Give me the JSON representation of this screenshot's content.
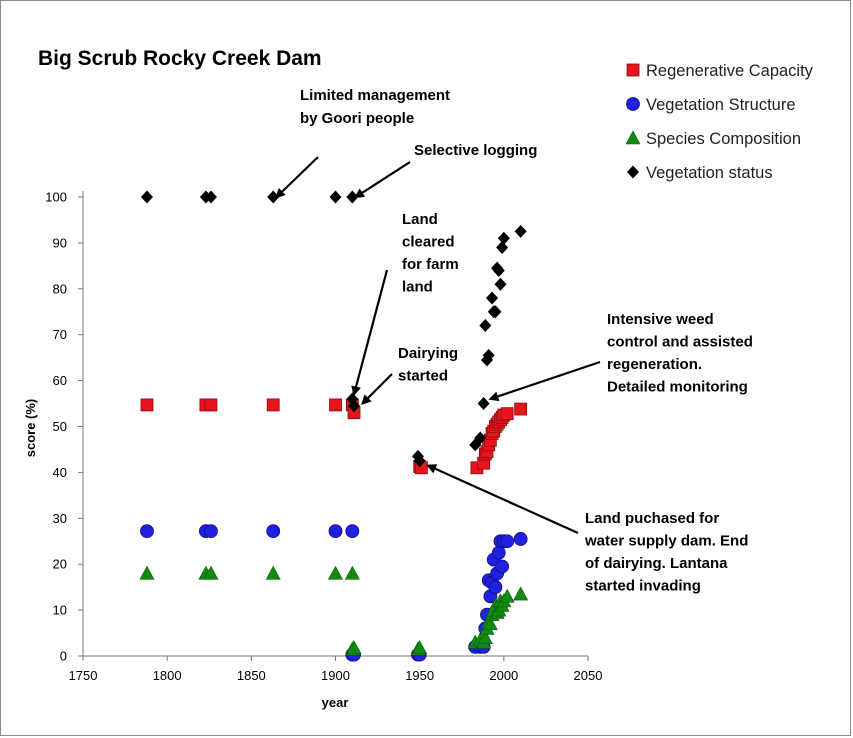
{
  "chart_data": {
    "type": "scatter",
    "title": "Big Scrub Rocky Creek Dam",
    "xlabel": "year",
    "ylabel": "score (%)",
    "xlim": [
      1750,
      2050
    ],
    "ylim": [
      0,
      100
    ],
    "x_ticks": [
      1750,
      1800,
      1850,
      1900,
      1950,
      2000,
      2050
    ],
    "y_ticks": [
      0,
      10,
      20,
      30,
      40,
      50,
      60,
      70,
      80,
      90,
      100
    ],
    "grid": false,
    "legend_position": "top-right",
    "series": [
      {
        "name": "Regenerative Capacity",
        "marker": "square",
        "color": "#e8141b",
        "points": [
          [
            1788,
            54.7
          ],
          [
            1823,
            54.7
          ],
          [
            1826,
            54.7
          ],
          [
            1863,
            54.7
          ],
          [
            1900,
            54.7
          ],
          [
            1910,
            54.7
          ],
          [
            1911,
            53
          ],
          [
            1950,
            41.3
          ],
          [
            1951,
            41
          ],
          [
            1984,
            41
          ],
          [
            1988,
            42
          ],
          [
            1989,
            44
          ],
          [
            1990,
            44.5
          ],
          [
            1991,
            46
          ],
          [
            1992,
            47
          ],
          [
            1993,
            48.5
          ],
          [
            1994,
            49
          ],
          [
            1995,
            50
          ],
          [
            1996,
            50.5
          ],
          [
            1997,
            51
          ],
          [
            1998,
            51.5
          ],
          [
            1999,
            52
          ],
          [
            2000,
            52.5
          ],
          [
            2002,
            52.8
          ],
          [
            2010,
            53.8
          ]
        ]
      },
      {
        "name": "Vegetation Structure",
        "marker": "circle",
        "color": "#2020e0",
        "points": [
          [
            1788,
            27.2
          ],
          [
            1823,
            27.2
          ],
          [
            1826,
            27.2
          ],
          [
            1863,
            27.2
          ],
          [
            1900,
            27.2
          ],
          [
            1910,
            27.2
          ],
          [
            1910,
            0.3
          ],
          [
            1911,
            0.3
          ],
          [
            1949,
            0.3
          ],
          [
            1950,
            0.3
          ],
          [
            1983,
            2
          ],
          [
            1986,
            2
          ],
          [
            1988,
            2
          ],
          [
            1989,
            6
          ],
          [
            1990,
            9
          ],
          [
            1991,
            16.5
          ],
          [
            1992,
            13
          ],
          [
            1993,
            16
          ],
          [
            1994,
            21
          ],
          [
            1995,
            15
          ],
          [
            1996,
            18
          ],
          [
            1997,
            22.5
          ],
          [
            1998,
            25
          ],
          [
            1999,
            19.5
          ],
          [
            2000,
            25
          ],
          [
            2002,
            25
          ],
          [
            2010,
            25.5
          ]
        ]
      },
      {
        "name": "Species Composition",
        "marker": "triangle",
        "color": "#108a10",
        "points": [
          [
            1788,
            18
          ],
          [
            1823,
            18
          ],
          [
            1826,
            18
          ],
          [
            1863,
            18
          ],
          [
            1900,
            18
          ],
          [
            1910,
            18
          ],
          [
            1910,
            1.5
          ],
          [
            1911,
            1.8
          ],
          [
            1949,
            1.5
          ],
          [
            1950,
            1.8
          ],
          [
            1983,
            3
          ],
          [
            1986,
            3.5
          ],
          [
            1988,
            3
          ],
          [
            1989,
            4
          ],
          [
            1990,
            6
          ],
          [
            1991,
            7.5
          ],
          [
            1992,
            7
          ],
          [
            1993,
            9
          ],
          [
            1994,
            10
          ],
          [
            1995,
            11
          ],
          [
            1996,
            9.5
          ],
          [
            1997,
            10
          ],
          [
            1998,
            12
          ],
          [
            1999,
            11
          ],
          [
            2000,
            12
          ],
          [
            2002,
            13
          ],
          [
            2010,
            13.5
          ]
        ]
      },
      {
        "name": "Vegetation status",
        "marker": "diamond",
        "color": "#000000",
        "points": [
          [
            1788,
            100
          ],
          [
            1823,
            100
          ],
          [
            1826,
            100
          ],
          [
            1863,
            100
          ],
          [
            1900,
            100
          ],
          [
            1910,
            100
          ],
          [
            1910,
            56
          ],
          [
            1911,
            54.5
          ],
          [
            1949,
            43.5
          ],
          [
            1950,
            42.5
          ],
          [
            1983,
            46
          ],
          [
            1986,
            47.5
          ],
          [
            1988,
            55
          ],
          [
            1989,
            72
          ],
          [
            1990,
            64.5
          ],
          [
            1991,
            65.5
          ],
          [
            1993,
            78
          ],
          [
            1994,
            75
          ],
          [
            1995,
            75
          ],
          [
            1996,
            84.5
          ],
          [
            1997,
            84
          ],
          [
            1998,
            81
          ],
          [
            1999,
            89
          ],
          [
            2000,
            91
          ],
          [
            2010,
            92.5
          ]
        ]
      }
    ],
    "annotations": [
      {
        "lines": [
          "Limited management",
          "by Goori people"
        ],
        "arrow_to": [
          1865,
          100
        ]
      },
      {
        "lines": [
          "Selective logging"
        ],
        "arrow_to": [
          1912,
          100
        ]
      },
      {
        "lines": [
          "Land",
          "cleared",
          "for farm",
          "land"
        ],
        "arrow_to": [
          1911,
          57
        ]
      },
      {
        "lines": [
          "Dairying",
          "started"
        ],
        "arrow_to": [
          1916,
          55
        ]
      },
      {
        "lines": [
          "Intensive weed",
          "control and assisted",
          "regeneration.",
          "Detailed monitoring"
        ],
        "arrow_to": [
          1992,
          56
        ]
      },
      {
        "lines": [
          "Land puchased for",
          "water supply dam.  End",
          "of dairying. Lantana",
          "started invading"
        ],
        "arrow_to": [
          1955,
          41.5
        ]
      }
    ]
  }
}
